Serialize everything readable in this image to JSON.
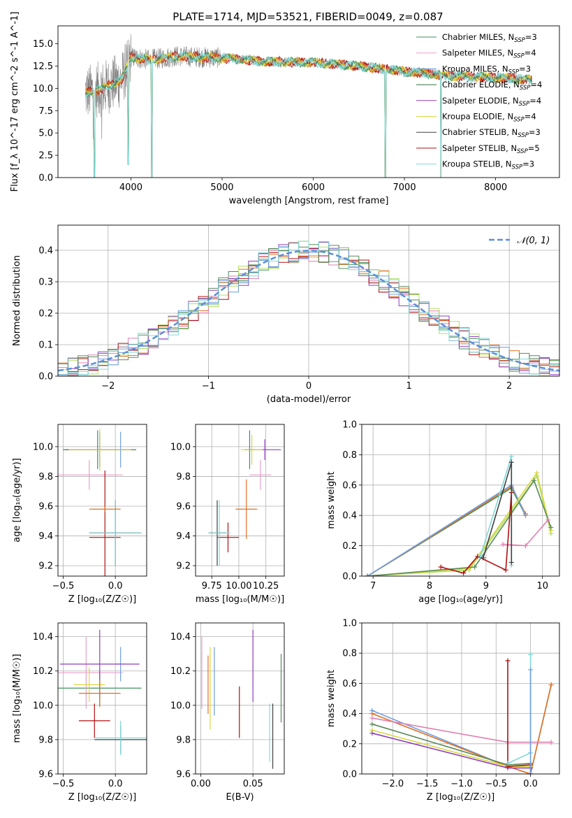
{
  "title": "PLATE=1714, MJD=53521, FIBERID=0049, z=0.087",
  "colors": {
    "Chabrier MILES": "#3f8f5f",
    "Salpeter MILES": "#e8a0c8",
    "Kroupa MILES": "#6f9fdf",
    "Chabrier ELODIE": "#2f6f3f",
    "Salpeter ELODIE": "#8f3fbf",
    "Kroupa ELODIE": "#d8d840",
    "Chabrier STELIB": "#404040",
    "Salpeter STELIB": "#b01010",
    "Kroupa STELIB": "#80d8d8",
    "data": "#808080",
    "orange": "#e07020",
    "pink": "#e080b0",
    "lime": "#b0e060",
    "green": "#5a8a5a",
    "gauss": "#5b8fd8"
  },
  "chart_data": [
    {
      "id": "spectrum",
      "type": "line",
      "title": "PLATE=1714, MJD=53521, FIBERID=0049, z=0.087",
      "xlabel": "wavelength [Angstrom, rest frame]",
      "ylabel": "Flux [f_λ 10^-17 erg cm^-2 s^-1 A^-1]",
      "xlim": [
        3200,
        8700
      ],
      "ylim": [
        0,
        17
      ],
      "xticks": [
        "4000",
        "5000",
        "6000",
        "7000",
        "8000"
      ],
      "yticks": [
        "0.0",
        "2.5",
        "5.0",
        "7.5",
        "10.0",
        "12.5",
        "15.0"
      ],
      "legend_placement": "upper-right",
      "legend": [
        {
          "label": "Chabrier MILES, N",
          "sub": "SSP",
          "suffix": "=3"
        },
        {
          "label": "Salpeter MILES, N",
          "sub": "SSP",
          "suffix": "=4"
        },
        {
          "label": "Kroupa MILES, N",
          "sub": "SSP",
          "suffix": "=3"
        },
        {
          "label": "Chabrier ELODIE, N",
          "sub": "SSP",
          "suffix": "=4"
        },
        {
          "label": "Salpeter ELODIE, N",
          "sub": "SSP",
          "suffix": "=4"
        },
        {
          "label": "Kroupa ELODIE, N",
          "sub": "SSP",
          "suffix": "=4"
        },
        {
          "label": "Chabrier STELIB, N",
          "sub": "SSP",
          "suffix": "=3"
        },
        {
          "label": "Salpeter STELIB, N",
          "sub": "SSP",
          "suffix": "=5"
        },
        {
          "label": "Kroupa STELIB, N",
          "sub": "SSP",
          "suffix": "=3"
        }
      ],
      "continuum": {
        "x": [
          3500,
          3700,
          3900,
          4000,
          4200,
          4500,
          5000,
          5500,
          6000,
          6500,
          7000,
          7500,
          8000,
          8500
        ],
        "y": [
          9.5,
          10.0,
          11.0,
          13.5,
          13.2,
          13.6,
          13.4,
          13.0,
          12.9,
          12.5,
          11.9,
          11.4,
          11.2,
          10.9
        ]
      },
      "dips": [
        {
          "x": 3970,
          "y": 1.5
        },
        {
          "x": 4230,
          "y": 0.0
        },
        {
          "x": 3600,
          "y": 0.0
        },
        {
          "x": 6790,
          "y": 0.0
        },
        {
          "x": 7400,
          "y": 0.0
        }
      ]
    },
    {
      "id": "residuals",
      "type": "step",
      "xlabel": "(data-model)/error",
      "ylabel": "Normed distribution",
      "xlim": [
        -2.5,
        2.5
      ],
      "ylim": [
        0,
        0.48
      ],
      "xticks": [
        "−2",
        "−1",
        "0",
        "1",
        "2"
      ],
      "yticks": [
        "0.0",
        "0.1",
        "0.2",
        "0.3",
        "0.4"
      ],
      "legend_label": "𝒩(0, 1)",
      "legend_placement": "upper-right",
      "bin_width": 0.1,
      "gauss_mean": 0,
      "gauss_sigma": 1
    },
    {
      "id": "age-vs-Z",
      "type": "errorbar",
      "xlabel": "Z [log₁₀(Z/Z☉)]",
      "ylabel": "age  [log₁₀(age/yr)]",
      "xlim": [
        -0.55,
        0.3
      ],
      "ylim": [
        9.13,
        10.15
      ],
      "xticks": [
        "−0.5",
        "0.0"
      ],
      "yticks": [
        "9.2",
        "9.4",
        "9.6",
        "9.8",
        "10.0"
      ],
      "points": [
        {
          "c": "Chabrier MILES",
          "x": -0.17,
          "xe": 0.3,
          "y": 9.98,
          "ye": 0.13
        },
        {
          "c": "Salpeter MILES",
          "x": -0.25,
          "xe": 0.32,
          "y": 9.81,
          "ye": 0.1
        },
        {
          "c": "Kroupa MILES",
          "x": 0.05,
          "xe": 0.05,
          "y": 9.98,
          "ye": 0.12
        },
        {
          "c": "Chabrier ELODIE",
          "x": -0.15,
          "xe": 0.35,
          "y": 9.98,
          "ye": 0.12
        },
        {
          "c": "Salpeter ELODIE",
          "x": -0.15,
          "xe": 0.3,
          "y": 9.98,
          "ye": 0.1
        },
        {
          "c": "Kroupa ELODIE",
          "x": -0.15,
          "xe": 0.3,
          "y": 9.98,
          "ye": 0.14
        },
        {
          "c": "Chabrier STELIB",
          "x": 0.0,
          "xe": 0.25,
          "y": 9.42,
          "ye": 0.22
        },
        {
          "c": "Salpeter STELIB",
          "x": -0.1,
          "xe": 0.15,
          "y": 9.39,
          "ye": 0.45
        },
        {
          "c": "Kroupa STELIB",
          "x": 0.0,
          "xe": 0.25,
          "y": 9.42,
          "ye": 0.22
        },
        {
          "c": "orange",
          "x": -0.1,
          "xe": 0.15,
          "y": 9.58,
          "ye": 0.02
        }
      ]
    },
    {
      "id": "age-vs-mass",
      "type": "errorbar",
      "xlabel": "mass [log₁₀(M/M☉)]",
      "ylabel": "",
      "xlim": [
        9.6,
        10.42
      ],
      "ylim": [
        9.13,
        10.15
      ],
      "xticks": [
        "9.75",
        "10.00",
        "10.25"
      ],
      "yticks": [
        "9.2",
        "9.4",
        "9.6",
        "9.8",
        "10.0"
      ],
      "points": [
        {
          "c": "Chabrier MILES",
          "x": 10.1,
          "xe": 0.05,
          "y": 9.98,
          "ye": 0.13
        },
        {
          "c": "Salpeter MILES",
          "x": 10.2,
          "xe": 0.1,
          "y": 9.81,
          "ye": 0.1
        },
        {
          "c": "Salpeter ELODIE",
          "x": 10.24,
          "xe": 0.15,
          "y": 9.98,
          "ye": 0.07
        },
        {
          "c": "Kroupa ELODIE",
          "x": 10.12,
          "xe": 0.1,
          "y": 9.98,
          "ye": 0.1
        },
        {
          "c": "Chabrier STELIB",
          "x": 9.8,
          "xe": 0.08,
          "y": 9.42,
          "ye": 0.22
        },
        {
          "c": "Salpeter STELIB",
          "x": 9.9,
          "xe": 0.1,
          "y": 9.39,
          "ye": 0.1
        },
        {
          "c": "Kroupa STELIB",
          "x": 9.82,
          "xe": 0.1,
          "y": 9.42,
          "ye": 0.22
        },
        {
          "c": "orange",
          "x": 10.07,
          "xe": 0.1,
          "y": 9.58,
          "ye": 0.2
        }
      ]
    },
    {
      "id": "mass-weight-vs-age",
      "type": "line",
      "xlabel": "age  [log₁₀(age/yr)]",
      "ylabel": "mass weight",
      "xlim": [
        6.8,
        10.3
      ],
      "ylim": [
        0,
        1
      ],
      "xticks": [
        "7",
        "8",
        "9",
        "10"
      ],
      "yticks": [
        "0.0",
        "0.2",
        "0.4",
        "0.6",
        "0.8",
        "1.0"
      ],
      "series": [
        {
          "c": "Chabrier MILES",
          "x": [
            6.9,
            9.45,
            9.7
          ],
          "y": [
            0.0,
            0.58,
            0.4
          ]
        },
        {
          "c": "orange",
          "x": [
            6.9,
            9.45,
            9.7
          ],
          "y": [
            0.0,
            0.59,
            0.41
          ]
        },
        {
          "c": "Kroupa MILES",
          "x": [
            6.9,
            9.45,
            9.7
          ],
          "y": [
            0.0,
            0.6,
            0.4
          ]
        },
        {
          "c": "lime",
          "x": [
            6.9,
            8.7,
            9.9,
            10.15
          ],
          "y": [
            0.0,
            0.04,
            0.66,
            0.28
          ]
        },
        {
          "c": "Kroupa ELODIE",
          "x": [
            6.9,
            8.7,
            9.9,
            10.15
          ],
          "y": [
            0.0,
            0.05,
            0.68,
            0.3
          ]
        },
        {
          "c": "green",
          "x": [
            6.9,
            8.8,
            9.85,
            10.15
          ],
          "y": [
            0.0,
            0.06,
            0.63,
            0.32
          ]
        },
        {
          "c": "pink",
          "x": [
            9.3,
            9.7,
            10.1
          ],
          "y": [
            0.21,
            0.2,
            0.37
          ]
        },
        {
          "c": "Salpeter STELIB",
          "x": [
            8.2,
            8.6,
            8.85,
            9.35,
            9.45
          ],
          "y": [
            0.06,
            0.02,
            0.13,
            0.04,
            0.55
          ]
        },
        {
          "c": "Kroupa STELIB",
          "x": [
            8.9,
            9.45,
            9.45
          ],
          "y": [
            0.13,
            0.79,
            0.07
          ]
        },
        {
          "c": "Chabrier STELIB",
          "x": [
            8.95,
            9.45,
            9.45
          ],
          "y": [
            0.12,
            0.75,
            0.09
          ]
        }
      ]
    },
    {
      "id": "mass-vs-Z",
      "type": "errorbar",
      "xlabel": "Z [log₁₀(Z/Z☉)]",
      "ylabel": "mass [log₁₀(M/M☉)]",
      "xlim": [
        -0.55,
        0.3
      ],
      "ylim": [
        9.6,
        10.48
      ],
      "xticks": [
        "−0.5",
        "0.0"
      ],
      "yticks": [
        "9.6",
        "9.8",
        "10.0",
        "10.2",
        "10.4"
      ],
      "points": [
        {
          "c": "Chabrier MILES",
          "x": -0.15,
          "xe": 0.4,
          "y": 10.1,
          "ye": 0.1
        },
        {
          "c": "Salpeter MILES",
          "x": -0.28,
          "xe": 0.35,
          "y": 10.19,
          "ye": 0.21
        },
        {
          "c": "Kroupa MILES",
          "x": 0.05,
          "xe": 0.05,
          "y": 10.24,
          "ye": 0.1
        },
        {
          "c": "Salpeter ELODIE",
          "x": -0.15,
          "xe": 0.38,
          "y": 10.24,
          "ye": 0.2
        },
        {
          "c": "Kroupa ELODIE",
          "x": -0.25,
          "xe": 0.15,
          "y": 10.12,
          "ye": 0.1
        },
        {
          "c": "Chabrier STELIB",
          "x": 0.05,
          "xe": 0.25,
          "y": 9.8,
          "ye": 0.08
        },
        {
          "c": "Salpeter STELIB",
          "x": -0.2,
          "xe": 0.15,
          "y": 9.91,
          "ye": 0.1
        },
        {
          "c": "Kroupa STELIB",
          "x": 0.05,
          "xe": 0.25,
          "y": 9.81,
          "ye": 0.1
        },
        {
          "c": "orange",
          "x": -0.15,
          "xe": 0.2,
          "y": 10.07,
          "ye": 0.08
        }
      ]
    },
    {
      "id": "mass-vs-EBV",
      "type": "errorbar",
      "xlabel": "E(B-V)",
      "ylabel": "",
      "xlim": [
        -0.005,
        0.08
      ],
      "ylim": [
        9.6,
        10.48
      ],
      "xticks": [
        "0.00",
        "0.05"
      ],
      "yticks": [
        "9.6",
        "9.8",
        "10.0",
        "10.2",
        "10.4"
      ],
      "points": [
        {
          "c": "Salpeter MILES",
          "x": 0.001,
          "xe": 0,
          "y": 10.19,
          "ye": 0.21
        },
        {
          "c": "Kroupa MILES",
          "x": 0.013,
          "xe": 0,
          "y": 10.14,
          "ye": 0.2
        },
        {
          "c": "Kroupa ELODIE",
          "x": 0.009,
          "xe": 0,
          "y": 10.1,
          "ye": 0.24
        },
        {
          "c": "orange",
          "x": 0.007,
          "xe": 0,
          "y": 10.12,
          "ye": 0.17
        },
        {
          "c": "Salpeter ELODIE",
          "x": 0.05,
          "xe": 0,
          "y": 10.23,
          "ye": 0.21
        },
        {
          "c": "Salpeter STELIB",
          "x": 0.037,
          "xe": 0,
          "y": 9.96,
          "ye": 0.15
        },
        {
          "c": "Kroupa STELIB",
          "x": 0.066,
          "xe": 0,
          "y": 9.84,
          "ye": 0.17
        },
        {
          "c": "Chabrier STELIB",
          "x": 0.069,
          "xe": 0,
          "y": 9.82,
          "ye": 0.19
        },
        {
          "c": "green",
          "x": 0.077,
          "xe": 0,
          "y": 10.1,
          "ye": 0.2
        }
      ]
    },
    {
      "id": "mass-weight-vs-Z",
      "type": "line",
      "xlabel": "Z [log₁₀(Z/Z☉)]",
      "ylabel": "mass weight",
      "xlim": [
        -2.45,
        0.42
      ],
      "ylim": [
        0,
        1
      ],
      "xticks": [
        "−2.0",
        "−1.5",
        "−1.0",
        "−0.5",
        "0.0"
      ],
      "yticks": [
        "0.0",
        "0.2",
        "0.4",
        "0.6",
        "0.8",
        "1.0"
      ],
      "series": [
        {
          "c": "Kroupa MILES",
          "x": [
            -2.3,
            -0.33,
            0.0,
            0.3
          ],
          "y": [
            0.42,
            0.05,
            0.0,
            0.59
          ]
        },
        {
          "c": "orange",
          "x": [
            -2.3,
            -0.33,
            0.0,
            0.3
          ],
          "y": [
            0.4,
            0.05,
            0.0,
            0.59
          ]
        },
        {
          "c": "pink",
          "x": [
            -2.3,
            -0.33,
            0.3
          ],
          "y": [
            0.37,
            0.21,
            0.21
          ]
        },
        {
          "c": "green",
          "x": [
            -2.3,
            -0.33,
            0.0
          ],
          "y": [
            0.33,
            0.06,
            0.07
          ]
        },
        {
          "c": "Kroupa ELODIE",
          "x": [
            -2.3,
            -0.33,
            0.0
          ],
          "y": [
            0.29,
            0.05,
            0.05
          ]
        },
        {
          "c": "Salpeter ELODIE",
          "x": [
            -2.3,
            -0.33,
            0.0
          ],
          "y": [
            0.27,
            0.04,
            0.04
          ]
        },
        {
          "c": "Salpeter STELIB",
          "x": [
            -0.33,
            -0.33,
            0.0,
            0.0
          ],
          "y": [
            0.75,
            0.05,
            0.06,
            0.0
          ]
        },
        {
          "c": "Kroupa STELIB",
          "x": [
            -0.33,
            0.0,
            0.0
          ],
          "y": [
            0.07,
            0.14,
            0.79
          ]
        },
        {
          "c": "Kroupa MILES",
          "x": [
            0.0,
            0.0
          ],
          "y": [
            0.0,
            0.69
          ]
        }
      ]
    }
  ]
}
